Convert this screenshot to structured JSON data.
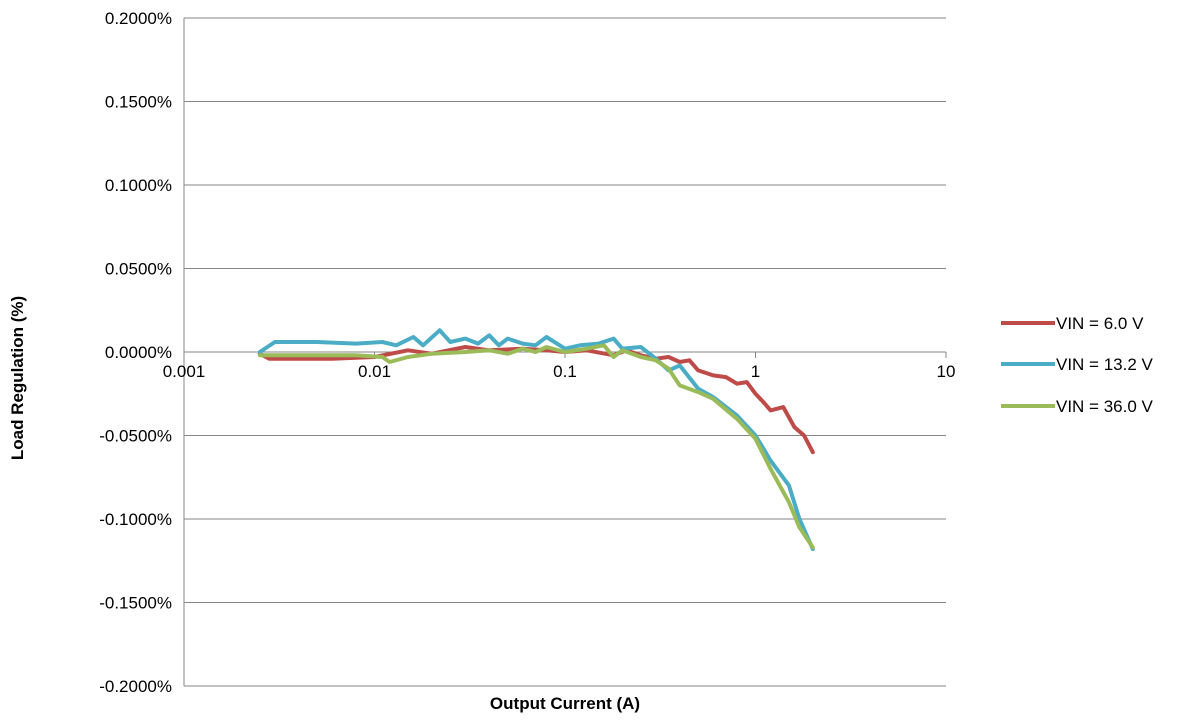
{
  "chart_data": {
    "type": "line",
    "title": "",
    "xlabel": "Output Current (A)",
    "ylabel": "Load Regulation (%)",
    "x_scale": "log",
    "xlim": [
      0.001,
      10
    ],
    "ylim": [
      -0.2,
      0.2
    ],
    "y_unit_suffix": "%",
    "x_tick_labels": [
      "0.001",
      "0.01",
      "0.1",
      "1",
      "10"
    ],
    "x_tick_values": [
      0.001,
      0.01,
      0.1,
      1,
      10
    ],
    "y_tick_labels": [
      "0.2000%",
      "0.1500%",
      "0.1000%",
      "0.0500%",
      "0.0000%",
      "-0.0500%",
      "-0.1000%",
      "-0.1500%",
      "-0.2000%"
    ],
    "y_tick_values": [
      0.2,
      0.15,
      0.1,
      0.05,
      0,
      -0.05,
      -0.1,
      -0.15,
      -0.2
    ],
    "grid": "horizontal",
    "legend_position": "right",
    "series": [
      {
        "name": "VIN = 6.0 V",
        "color": "#BE4B48",
        "x": [
          0.0025,
          0.0028,
          0.004,
          0.006,
          0.01,
          0.015,
          0.02,
          0.03,
          0.04,
          0.06,
          0.08,
          0.1,
          0.13,
          0.18,
          0.21,
          0.25,
          0.3,
          0.35,
          0.4,
          0.45,
          0.5,
          0.6,
          0.7,
          0.8,
          0.9,
          1.0,
          1.1,
          1.2,
          1.4,
          1.6,
          1.8,
          2.0
        ],
        "y": [
          -0.001,
          -0.004,
          -0.004,
          -0.004,
          -0.003,
          0.001,
          -0.001,
          0.003,
          0.001,
          0.002,
          0.001,
          0.0,
          0.001,
          -0.002,
          0.001,
          -0.002,
          -0.004,
          -0.003,
          -0.006,
          -0.005,
          -0.011,
          -0.014,
          -0.015,
          -0.019,
          -0.018,
          -0.025,
          -0.03,
          -0.035,
          -0.033,
          -0.045,
          -0.05,
          -0.06
        ]
      },
      {
        "name": "VIN = 13.2 V",
        "color": "#4BACC6",
        "x": [
          0.0025,
          0.003,
          0.005,
          0.008,
          0.011,
          0.013,
          0.016,
          0.018,
          0.022,
          0.025,
          0.03,
          0.035,
          0.04,
          0.045,
          0.05,
          0.06,
          0.07,
          0.08,
          0.1,
          0.12,
          0.15,
          0.18,
          0.2,
          0.25,
          0.3,
          0.35,
          0.4,
          0.5,
          0.6,
          0.8,
          1.0,
          1.2,
          1.5,
          1.7,
          2.0
        ],
        "y": [
          0.0,
          0.006,
          0.006,
          0.005,
          0.006,
          0.004,
          0.009,
          0.004,
          0.013,
          0.006,
          0.008,
          0.005,
          0.01,
          0.004,
          0.008,
          0.005,
          0.004,
          0.009,
          0.002,
          0.004,
          0.005,
          0.008,
          0.002,
          0.003,
          -0.004,
          -0.011,
          -0.008,
          -0.022,
          -0.027,
          -0.038,
          -0.05,
          -0.065,
          -0.08,
          -0.1,
          -0.118
        ]
      },
      {
        "name": "VIN = 36.0 V",
        "color": "#9BBB59",
        "x": [
          0.0025,
          0.003,
          0.005,
          0.008,
          0.011,
          0.012,
          0.015,
          0.02,
          0.03,
          0.04,
          0.05,
          0.06,
          0.07,
          0.08,
          0.1,
          0.13,
          0.16,
          0.18,
          0.2,
          0.25,
          0.3,
          0.35,
          0.4,
          0.5,
          0.6,
          0.8,
          1.0,
          1.2,
          1.5,
          1.7,
          2.0
        ],
        "y": [
          -0.002,
          -0.002,
          -0.002,
          -0.002,
          -0.003,
          -0.006,
          -0.003,
          -0.001,
          0.0,
          0.001,
          -0.001,
          0.002,
          0.0,
          0.003,
          0.0,
          0.002,
          0.004,
          -0.003,
          0.001,
          -0.003,
          -0.005,
          -0.01,
          -0.02,
          -0.024,
          -0.028,
          -0.04,
          -0.052,
          -0.07,
          -0.09,
          -0.105,
          -0.117
        ]
      }
    ]
  }
}
